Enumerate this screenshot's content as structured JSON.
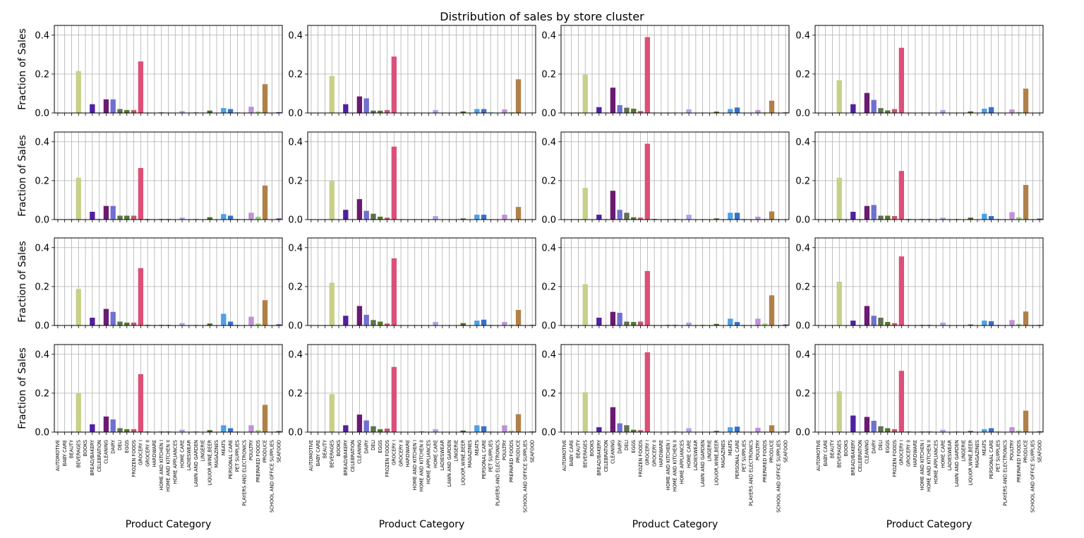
{
  "chart_data": {
    "type": "bar",
    "title": "Distribution of sales by store cluster",
    "xlabel": "Product Category",
    "ylabel": "Fraction of Sales",
    "ylim": [
      0,
      0.45
    ],
    "yticks": [
      "0.0",
      "0.2",
      "0.4"
    ],
    "grid": true,
    "legend": "none",
    "categories": [
      "AUTOMOTIVE",
      "BABY CARE",
      "BEAUTY",
      "BEVERAGES",
      "BOOKS",
      "BREAD/BAKERY",
      "CELEBRATION",
      "CLEANING",
      "DAIRY",
      "DELI",
      "EGGS",
      "FROZEN FOODS",
      "GROCERY I",
      "GROCERY II",
      "HARDWARE",
      "HOME AND KITCHEN I",
      "HOME AND KITCHEN II",
      "HOME APPLIANCES",
      "HOME CARE",
      "LADIESWEAR",
      "LAWN AND GARDEN",
      "LINGERIE",
      "LIQUOR,WINE,BEER",
      "MAGAZINES",
      "MEATS",
      "PERSONAL CARE",
      "PET SUPPLIES",
      "PLAYERS AND ELECTRONICS",
      "POULTRY",
      "PREPARED FOODS",
      "PRODUCE",
      "SCHOOL AND OFFICE SUPPLIES",
      "SEAFOOD"
    ],
    "colors": [
      "#5a7c30",
      "#90c86c",
      "#c0a0d8",
      "#c8d088",
      "#3c2898",
      "#5020a0",
      "#90b8e8",
      "#6a1a70",
      "#7070d0",
      "#607050",
      "#527828",
      "#c05a70",
      "#dc5078",
      "#8a2040",
      "#a080c0",
      "#405098",
      "#4a3a88",
      "#2a7a5a",
      "#b0a0e8",
      "#a090c8",
      "#58a048",
      "#b080c0",
      "#486a28",
      "#80c080",
      "#4ca0e8",
      "#3870c8",
      "#70a8e0",
      "#d87090",
      "#c090d8",
      "#98d078",
      "#b08048",
      "#a8a8d8",
      "#6a3090"
    ],
    "panels": [
      {
        "values": [
          0.002,
          0.001,
          0.002,
          0.215,
          0.0,
          0.045,
          0.003,
          0.07,
          0.07,
          0.02,
          0.015,
          0.015,
          0.265,
          0.002,
          0.001,
          0.003,
          0.002,
          0.001,
          0.01,
          0.002,
          0.003,
          0.001,
          0.012,
          0.001,
          0.025,
          0.02,
          0.003,
          0.002,
          0.032,
          0.008,
          0.148,
          0.002,
          0.004
        ]
      },
      {
        "values": [
          0.001,
          0.001,
          0.001,
          0.19,
          0.0,
          0.045,
          0.002,
          0.085,
          0.075,
          0.012,
          0.012,
          0.015,
          0.29,
          0.002,
          0.001,
          0.002,
          0.001,
          0.001,
          0.015,
          0.001,
          0.002,
          0.001,
          0.008,
          0.001,
          0.02,
          0.02,
          0.003,
          0.001,
          0.018,
          0.004,
          0.173,
          0.001,
          0.002
        ]
      },
      {
        "values": [
          0.001,
          0.001,
          0.002,
          0.197,
          0.0,
          0.03,
          0.003,
          0.13,
          0.04,
          0.027,
          0.022,
          0.01,
          0.39,
          0.002,
          0.001,
          0.002,
          0.002,
          0.001,
          0.018,
          0.001,
          0.002,
          0.001,
          0.007,
          0.001,
          0.02,
          0.028,
          0.002,
          0.002,
          0.015,
          0.003,
          0.063,
          0.001,
          0.003
        ]
      },
      {
        "values": [
          0.001,
          0.001,
          0.001,
          0.168,
          0.0,
          0.045,
          0.002,
          0.103,
          0.067,
          0.025,
          0.013,
          0.02,
          0.335,
          0.002,
          0.001,
          0.002,
          0.002,
          0.001,
          0.015,
          0.001,
          0.002,
          0.001,
          0.008,
          0.001,
          0.022,
          0.03,
          0.002,
          0.001,
          0.018,
          0.005,
          0.125,
          0.001,
          0.002
        ]
      },
      {
        "values": [
          0.002,
          0.001,
          0.003,
          0.215,
          0.0,
          0.04,
          0.004,
          0.07,
          0.07,
          0.02,
          0.02,
          0.02,
          0.265,
          0.003,
          0.002,
          0.003,
          0.003,
          0.001,
          0.01,
          0.002,
          0.003,
          0.001,
          0.012,
          0.001,
          0.028,
          0.02,
          0.003,
          0.002,
          0.035,
          0.015,
          0.175,
          0.002,
          0.006
        ]
      },
      {
        "values": [
          0.001,
          0.001,
          0.002,
          0.198,
          0.0,
          0.05,
          0.002,
          0.105,
          0.045,
          0.03,
          0.015,
          0.01,
          0.375,
          0.002,
          0.001,
          0.002,
          0.002,
          0.001,
          0.018,
          0.001,
          0.002,
          0.001,
          0.006,
          0.001,
          0.025,
          0.025,
          0.002,
          0.001,
          0.025,
          0.003,
          0.065,
          0.001,
          0.002
        ]
      },
      {
        "values": [
          0.001,
          0.001,
          0.002,
          0.163,
          0.0,
          0.025,
          0.003,
          0.148,
          0.05,
          0.035,
          0.012,
          0.01,
          0.39,
          0.003,
          0.001,
          0.002,
          0.003,
          0.001,
          0.025,
          0.002,
          0.002,
          0.001,
          0.006,
          0.001,
          0.035,
          0.035,
          0.003,
          0.002,
          0.015,
          0.004,
          0.042,
          0.001,
          0.002
        ]
      },
      {
        "values": [
          0.002,
          0.001,
          0.002,
          0.215,
          0.0,
          0.04,
          0.003,
          0.07,
          0.075,
          0.02,
          0.02,
          0.018,
          0.25,
          0.003,
          0.002,
          0.003,
          0.003,
          0.001,
          0.01,
          0.002,
          0.003,
          0.001,
          0.01,
          0.001,
          0.03,
          0.018,
          0.003,
          0.002,
          0.038,
          0.012,
          0.178,
          0.002,
          0.005
        ]
      },
      {
        "values": [
          0.002,
          0.001,
          0.003,
          0.188,
          0.0,
          0.04,
          0.004,
          0.085,
          0.07,
          0.02,
          0.015,
          0.015,
          0.295,
          0.003,
          0.002,
          0.003,
          0.003,
          0.001,
          0.012,
          0.002,
          0.003,
          0.001,
          0.01,
          0.001,
          0.06,
          0.02,
          0.003,
          0.002,
          0.045,
          0.01,
          0.13,
          0.002,
          0.006
        ]
      },
      {
        "values": [
          0.001,
          0.001,
          0.002,
          0.22,
          0.0,
          0.05,
          0.002,
          0.1,
          0.055,
          0.028,
          0.02,
          0.01,
          0.345,
          0.002,
          0.001,
          0.002,
          0.002,
          0.001,
          0.018,
          0.001,
          0.002,
          0.001,
          0.012,
          0.001,
          0.025,
          0.03,
          0.003,
          0.002,
          0.018,
          0.005,
          0.08,
          0.001,
          0.003
        ]
      },
      {
        "values": [
          0.002,
          0.001,
          0.002,
          0.212,
          0.0,
          0.04,
          0.003,
          0.07,
          0.065,
          0.02,
          0.018,
          0.02,
          0.28,
          0.002,
          0.002,
          0.003,
          0.003,
          0.001,
          0.015,
          0.002,
          0.003,
          0.001,
          0.008,
          0.001,
          0.035,
          0.018,
          0.003,
          0.002,
          0.035,
          0.01,
          0.155,
          0.002,
          0.005
        ]
      },
      {
        "values": [
          0.001,
          0.001,
          0.002,
          0.225,
          0.0,
          0.025,
          0.003,
          0.1,
          0.05,
          0.04,
          0.018,
          0.012,
          0.355,
          0.002,
          0.002,
          0.003,
          0.003,
          0.001,
          0.015,
          0.002,
          0.002,
          0.001,
          0.005,
          0.001,
          0.025,
          0.022,
          0.003,
          0.002,
          0.028,
          0.008,
          0.072,
          0.002,
          0.003
        ]
      },
      {
        "values": [
          0.002,
          0.001,
          0.003,
          0.2,
          0.0,
          0.04,
          0.004,
          0.08,
          0.065,
          0.02,
          0.015,
          0.015,
          0.298,
          0.003,
          0.002,
          0.003,
          0.003,
          0.001,
          0.012,
          0.002,
          0.003,
          0.001,
          0.01,
          0.001,
          0.035,
          0.02,
          0.003,
          0.002,
          0.035,
          0.01,
          0.14,
          0.002,
          0.005
        ]
      },
      {
        "values": [
          0.001,
          0.001,
          0.002,
          0.195,
          0.0,
          0.035,
          0.003,
          0.09,
          0.06,
          0.03,
          0.015,
          0.018,
          0.335,
          0.002,
          0.001,
          0.002,
          0.003,
          0.001,
          0.015,
          0.001,
          0.002,
          0.001,
          0.008,
          0.001,
          0.035,
          0.03,
          0.003,
          0.002,
          0.035,
          0.008,
          0.092,
          0.002,
          0.003
        ]
      },
      {
        "values": [
          0.001,
          0.001,
          0.002,
          0.205,
          0.0,
          0.025,
          0.003,
          0.128,
          0.045,
          0.035,
          0.012,
          0.01,
          0.41,
          0.002,
          0.001,
          0.002,
          0.003,
          0.001,
          0.02,
          0.002,
          0.002,
          0.001,
          0.006,
          0.001,
          0.025,
          0.028,
          0.002,
          0.002,
          0.022,
          0.003,
          0.035,
          0.001,
          0.003
        ]
      },
      {
        "values": [
          0.002,
          0.001,
          0.002,
          0.21,
          0.0,
          0.085,
          0.003,
          0.078,
          0.058,
          0.03,
          0.02,
          0.015,
          0.315,
          0.003,
          0.002,
          0.003,
          0.003,
          0.001,
          0.012,
          0.002,
          0.003,
          0.001,
          0.006,
          0.001,
          0.015,
          0.02,
          0.003,
          0.002,
          0.025,
          0.008,
          0.11,
          0.002,
          0.004
        ]
      }
    ]
  }
}
